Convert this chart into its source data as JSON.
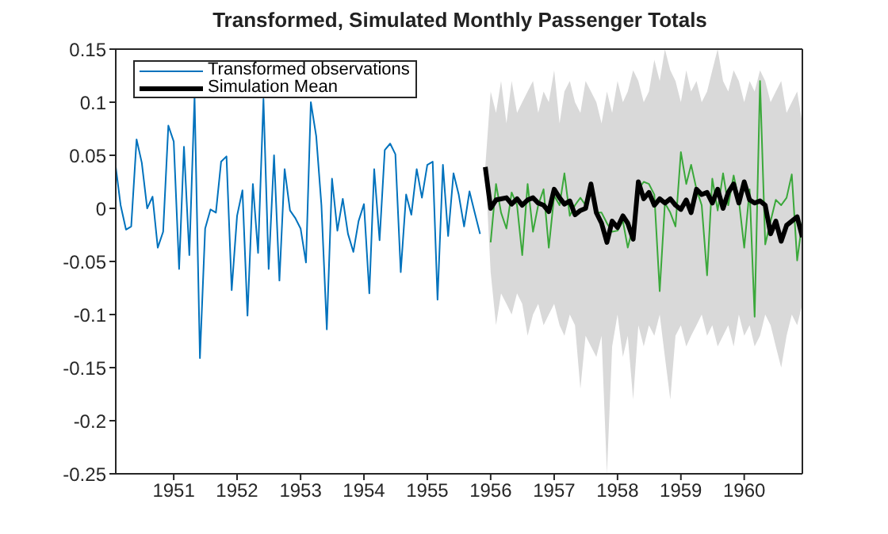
{
  "chart_data": {
    "type": "line",
    "title": "Transformed, Simulated Monthly Passenger Totals",
    "xlim": [
      "1950-02",
      "1960-12"
    ],
    "xticks": [
      "1951",
      "1952",
      "1953",
      "1954",
      "1955",
      "1956",
      "1957",
      "1958",
      "1959",
      "1960"
    ],
    "ylim": [
      -0.25,
      0.15
    ],
    "yticks": [
      -0.25,
      -0.2,
      -0.15,
      -0.1,
      -0.05,
      0,
      0.05,
      0.1,
      0.15
    ],
    "grid": false,
    "legend": "top left",
    "series": [
      {
        "name": "Transformed observations",
        "color": "#0072bd",
        "x": [
          "1950-02",
          "1950-03",
          "1950-04",
          "1950-05",
          "1950-06",
          "1950-07",
          "1950-08",
          "1950-09",
          "1950-10",
          "1950-11",
          "1950-12",
          "1951-01",
          "1951-02",
          "1951-03",
          "1951-04",
          "1951-05",
          "1951-06",
          "1951-07",
          "1951-08",
          "1951-09",
          "1951-10",
          "1951-11",
          "1951-12",
          "1952-01",
          "1952-02",
          "1952-03",
          "1952-04",
          "1952-05",
          "1952-06",
          "1952-07",
          "1952-08",
          "1952-09",
          "1952-10",
          "1952-11",
          "1952-12",
          "1953-01",
          "1953-02",
          "1953-03",
          "1953-04",
          "1953-05",
          "1953-06",
          "1953-07",
          "1953-08",
          "1953-09",
          "1953-10",
          "1953-11",
          "1953-12",
          "1954-01",
          "1954-02",
          "1954-03",
          "1954-04",
          "1954-05",
          "1954-06",
          "1954-07",
          "1954-08",
          "1954-09",
          "1954-10",
          "1954-11",
          "1954-12",
          "1955-01",
          "1955-02",
          "1955-03",
          "1955-04",
          "1955-05",
          "1955-06",
          "1955-07",
          "1955-08",
          "1955-09",
          "1955-10",
          "1955-11"
        ],
        "values": [
          0.039,
          0.003,
          -0.02,
          -0.017,
          0.065,
          0.043,
          0.0,
          0.011,
          -0.037,
          -0.022,
          0.078,
          0.063,
          -0.057,
          0.058,
          -0.044,
          0.105,
          -0.141,
          -0.019,
          -0.001,
          -0.004,
          0.044,
          0.049,
          -0.077,
          -0.007,
          0.017,
          -0.101,
          0.023,
          -0.042,
          0.103,
          -0.057,
          0.05,
          -0.068,
          0.037,
          -0.002,
          -0.009,
          -0.019,
          -0.051,
          0.1,
          0.068,
          0.003,
          -0.114,
          0.028,
          -0.021,
          0.009,
          -0.024,
          -0.041,
          -0.012,
          0.004,
          -0.08,
          0.037,
          -0.03,
          0.055,
          0.061,
          0.051,
          -0.06,
          0.013,
          -0.006,
          0.037,
          0.01,
          0.041,
          0.044,
          -0.086,
          0.041,
          -0.026,
          0.033,
          0.013,
          -0.017,
          0.016,
          -0.004,
          -0.024
        ]
      },
      {
        "color": "#3aa83a",
        "x": [
          "1956-01",
          "1956-02",
          "1956-03",
          "1956-04",
          "1956-05",
          "1956-06",
          "1956-07",
          "1956-08",
          "1956-09",
          "1956-10",
          "1956-11",
          "1956-12",
          "1957-01",
          "1957-02",
          "1957-03",
          "1957-04",
          "1957-05",
          "1957-06",
          "1957-07",
          "1957-08",
          "1957-09",
          "1957-10",
          "1957-11",
          "1957-12",
          "1958-01",
          "1958-02",
          "1958-03",
          "1958-04",
          "1958-05",
          "1958-06",
          "1958-07",
          "1958-08",
          "1958-09",
          "1958-10",
          "1958-11",
          "1958-12",
          "1959-01",
          "1959-02",
          "1959-03",
          "1959-04",
          "1959-05",
          "1959-06",
          "1959-07",
          "1959-08",
          "1959-09",
          "1959-10",
          "1959-11",
          "1959-12",
          "1960-01",
          "1960-02",
          "1960-03",
          "1960-04",
          "1960-05",
          "1960-06",
          "1960-07",
          "1960-08",
          "1960-09",
          "1960-10",
          "1960-11",
          "1960-12"
        ],
        "values": [
          -0.032,
          0.023,
          -0.004,
          -0.019,
          0.015,
          0.003,
          -0.044,
          0.023,
          -0.022,
          0.003,
          0.018,
          -0.037,
          0.012,
          0.003,
          0.033,
          -0.007,
          0.003,
          0.01,
          0.003,
          0.02,
          -0.004,
          -0.004,
          -0.014,
          -0.022,
          -0.021,
          -0.012,
          -0.037,
          -0.017,
          0.018,
          0.025,
          0.023,
          0.013,
          -0.078,
          0.005,
          -0.004,
          -0.017,
          0.053,
          0.023,
          0.041,
          0.018,
          0.003,
          -0.063,
          0.028,
          -0.002,
          0.033,
          0.003,
          0.031,
          0.008,
          -0.037,
          0.018,
          -0.102,
          0.12,
          -0.034,
          -0.012,
          0.008,
          0.003,
          0.01,
          0.032,
          -0.049,
          -0.012
        ]
      },
      {
        "name": "Simulation Mean",
        "color": "#000000",
        "x": [
          "1955-12",
          "1956-01",
          "1956-02",
          "1956-03",
          "1956-04",
          "1956-05",
          "1956-06",
          "1956-07",
          "1956-08",
          "1956-09",
          "1956-10",
          "1956-11",
          "1956-12",
          "1957-01",
          "1957-02",
          "1957-03",
          "1957-04",
          "1957-05",
          "1957-06",
          "1957-07",
          "1957-08",
          "1957-09",
          "1957-10",
          "1957-11",
          "1957-12",
          "1958-01",
          "1958-02",
          "1958-03",
          "1958-04",
          "1958-05",
          "1958-06",
          "1958-07",
          "1958-08",
          "1958-09",
          "1958-10",
          "1958-11",
          "1958-12",
          "1959-01",
          "1959-02",
          "1959-03",
          "1959-04",
          "1959-05",
          "1959-06",
          "1959-07",
          "1959-08",
          "1959-09",
          "1959-10",
          "1959-11",
          "1959-12",
          "1960-01",
          "1960-02",
          "1960-03",
          "1960-04",
          "1960-05",
          "1960-06",
          "1960-07",
          "1960-08",
          "1960-09",
          "1960-10",
          "1960-11",
          "1960-12"
        ],
        "values": [
          0.039,
          0,
          0.008,
          0.009,
          0.01,
          0.004,
          0.009,
          0.003,
          0.008,
          0.01,
          0.005,
          0.003,
          -0.003,
          0.018,
          0.01,
          0.004,
          0.007,
          -0.006,
          -0.002,
          0,
          0.023,
          -0.004,
          -0.014,
          -0.032,
          -0.012,
          -0.018,
          -0.007,
          -0.014,
          -0.029,
          0.025,
          0.009,
          0.015,
          0.003,
          0.009,
          0.005,
          0.009,
          0.003,
          -0.001,
          0.008,
          -0.004,
          0.018,
          0.013,
          0.015,
          0.005,
          0.018,
          0,
          0.015,
          0.023,
          0.005,
          0.025,
          0.008,
          0.005,
          0.007,
          0.003,
          -0.024,
          -0.012,
          -0.031,
          -0.016,
          -0.012,
          -0.008,
          -0.027
        ],
        "upper": [
          0.039,
          0.11,
          0.09,
          0.12,
          0.08,
          0.12,
          0.09,
          0.1,
          0.11,
          0.12,
          0.09,
          0.11,
          0.1,
          0.13,
          0.08,
          0.11,
          0.12,
          0.1,
          0.09,
          0.12,
          0.11,
          0.1,
          0.08,
          0.11,
          0.09,
          0.12,
          0.1,
          0.11,
          0.13,
          0.12,
          0.1,
          0.11,
          0.14,
          0.12,
          0.15,
          0.13,
          0.12,
          0.1,
          0.13,
          0.11,
          0.12,
          0.1,
          0.11,
          0.13,
          0.15,
          0.12,
          0.11,
          0.13,
          0.12,
          0.1,
          0.12,
          0.11,
          0.13,
          0.12,
          0.1,
          0.11,
          0.12,
          0.09,
          0.1,
          0.11,
          0.08
        ],
        "lower": [
          0.039,
          -0.06,
          -0.11,
          -0.08,
          -0.09,
          -0.1,
          -0.08,
          -0.09,
          -0.12,
          -0.1,
          -0.09,
          -0.11,
          -0.1,
          -0.09,
          -0.11,
          -0.12,
          -0.1,
          -0.11,
          -0.17,
          -0.12,
          -0.13,
          -0.14,
          -0.12,
          -0.25,
          -0.13,
          -0.1,
          -0.14,
          -0.12,
          -0.18,
          -0.11,
          -0.13,
          -0.11,
          -0.12,
          -0.1,
          -0.14,
          -0.18,
          -0.12,
          -0.11,
          -0.13,
          -0.12,
          -0.11,
          -0.1,
          -0.12,
          -0.11,
          -0.13,
          -0.12,
          -0.11,
          -0.13,
          -0.1,
          -0.12,
          -0.11,
          -0.13,
          -0.12,
          -0.1,
          -0.11,
          -0.13,
          -0.15,
          -0.12,
          -0.1,
          -0.11,
          -0.09
        ]
      }
    ]
  }
}
